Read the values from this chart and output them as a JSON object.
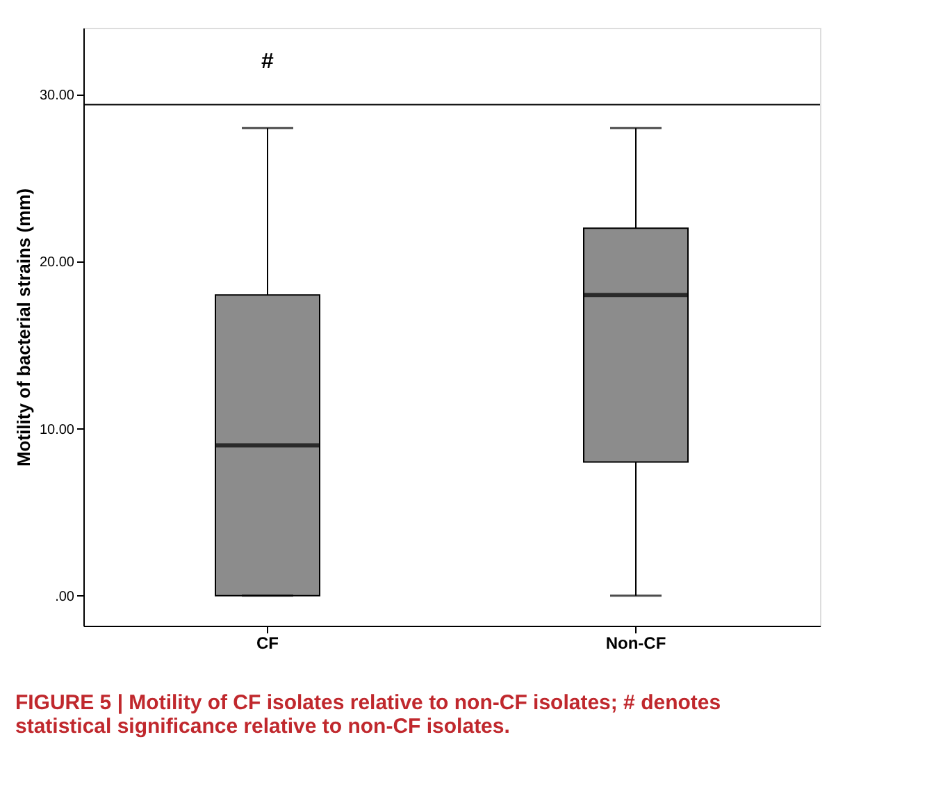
{
  "chart_data": {
    "type": "box",
    "ylabel": "Motility of bacterial strains (mm)",
    "categories": [
      "CF",
      "Non-CF"
    ],
    "boxes": [
      {
        "low": 0,
        "q1": 0,
        "median": 9,
        "q3": 18,
        "high": 28
      },
      {
        "low": 0,
        "q1": 8,
        "median": 18,
        "q3": 22,
        "high": 28
      }
    ],
    "color": "#8c8c8c",
    "ylim": [
      -1.8,
      34
    ],
    "yticks": [
      {
        "value": 0,
        "label": ".00"
      },
      {
        "value": 10,
        "label": "10.00"
      },
      {
        "value": 20,
        "label": "20.00"
      },
      {
        "value": 30,
        "label": "30.00"
      }
    ],
    "ref_lines": [
      {
        "axis": "y",
        "value": 29.4,
        "color": "#000000"
      }
    ],
    "annotations": [
      "#",
      "FIGURE 5 | Motility of CF isolates relative to non-CF isolates; # denotes statistical significance relative to non-CF isolates."
    ],
    "grid": false
  }
}
